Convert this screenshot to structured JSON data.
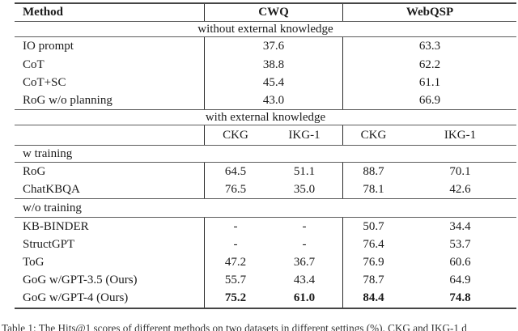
{
  "table": {
    "header": {
      "method": "Method",
      "cwq": "CWQ",
      "webqsp": "WebQSP"
    },
    "span_without": "without external knowledge",
    "span_with": "with external knowledge",
    "subheader": {
      "cwq_ckg": "CKG",
      "cwq_ikg": "IKG-1",
      "web_ckg": "CKG",
      "web_ikg": "IKG-1"
    },
    "section_w_training": "w training",
    "section_wo_training": "w/o training",
    "no_knowledge_rows": [
      {
        "method": "IO prompt",
        "cwq": "37.6",
        "webqsp": "63.3"
      },
      {
        "method": "CoT",
        "cwq": "38.8",
        "webqsp": "62.2"
      },
      {
        "method": "CoT+SC",
        "cwq": "45.4",
        "webqsp": "61.1"
      },
      {
        "method": "RoG w/o planning",
        "cwq": "43.0",
        "webqsp": "66.9"
      }
    ],
    "w_training_rows": [
      {
        "method": "RoG",
        "cells": [
          "64.5",
          "51.1",
          "88.7",
          "70.1"
        ]
      },
      {
        "method": "ChatKBQA",
        "cells": [
          "76.5",
          "35.0",
          "78.1",
          "42.6"
        ]
      }
    ],
    "wo_training_rows": [
      {
        "method": "KB-BINDER",
        "cells": [
          "-",
          "-",
          "50.7",
          "34.4"
        ]
      },
      {
        "method": "StructGPT",
        "cells": [
          "-",
          "-",
          "76.4",
          "53.7"
        ]
      },
      {
        "method": "ToG",
        "cells": [
          "47.2",
          "36.7",
          "76.9",
          "60.6"
        ]
      },
      {
        "method": "GoG w/GPT-3.5 (Ours)",
        "cells": [
          "55.7",
          "43.4",
          "78.7",
          "64.9"
        ]
      },
      {
        "method": "GoG w/GPT-4 (Ours)",
        "cells": [
          "75.2",
          "61.0",
          "84.4",
          "74.8"
        ]
      }
    ],
    "caption": "Table 1: The Hits@1 scores of different methods on two datasets in different settings (%). CKG and IKG-1 d"
  }
}
